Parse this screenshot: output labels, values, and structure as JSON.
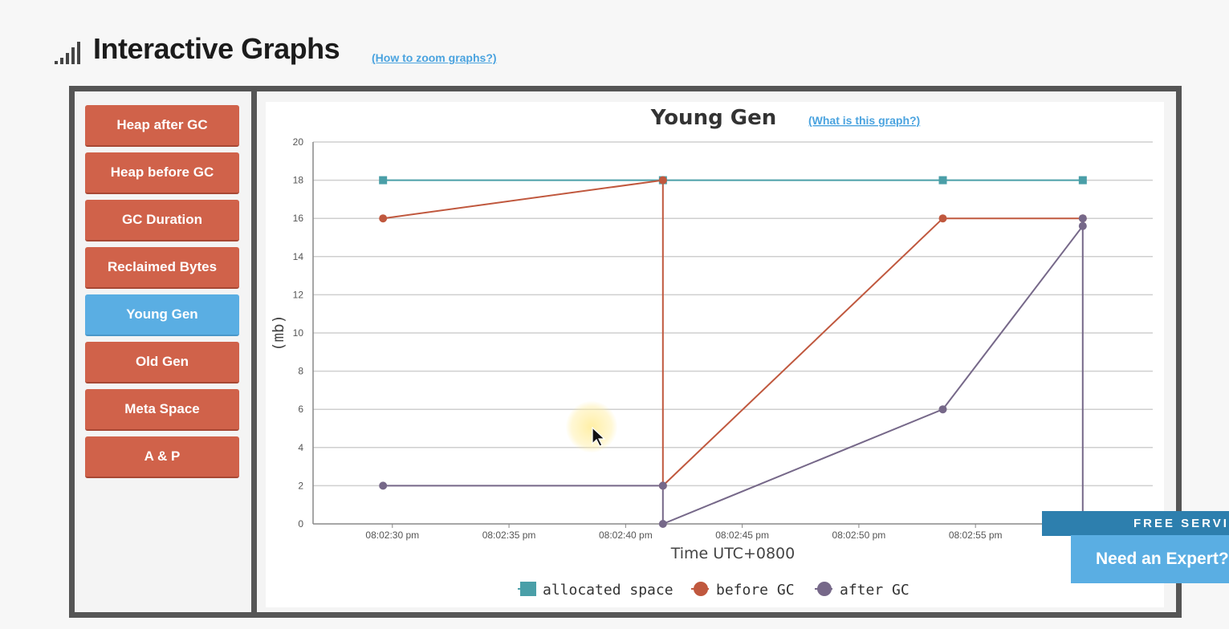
{
  "page": {
    "title": "Interactive Graphs",
    "zoom_link": "(How to zoom graphs?)"
  },
  "sidebar": {
    "items": [
      {
        "label": "Heap after GC",
        "active": false
      },
      {
        "label": "Heap before GC",
        "active": false
      },
      {
        "label": "GC Duration",
        "active": false
      },
      {
        "label": "Reclaimed Bytes",
        "active": false
      },
      {
        "label": "Young Gen",
        "active": true
      },
      {
        "label": "Old Gen",
        "active": false
      },
      {
        "label": "Meta Space",
        "active": false
      },
      {
        "label": "A & P",
        "active": false
      }
    ]
  },
  "chart_header": {
    "what_link": "(What is this graph?)"
  },
  "chart_data": {
    "type": "line",
    "title": "Young Gen",
    "xlabel": "Time UTC+0800",
    "ylabel": "(mb)",
    "ylim": [
      0,
      20
    ],
    "yticks": [
      0,
      2,
      4,
      6,
      8,
      10,
      12,
      14,
      16,
      18,
      20
    ],
    "xlim": [
      "08:02:26.6",
      "08:03:02.6"
    ],
    "xticks": [
      {
        "t": "08:02:30",
        "label": "08:02:30 pm"
      },
      {
        "t": "08:02:35",
        "label": "08:02:35 pm"
      },
      {
        "t": "08:02:40",
        "label": "08:02:40 pm"
      },
      {
        "t": "08:02:45",
        "label": "08:02:45 pm"
      },
      {
        "t": "08:02:50",
        "label": "08:02:50 pm"
      },
      {
        "t": "08:02:55",
        "label": "08:02:55 pm"
      }
    ],
    "grid": true,
    "legend_position": "bottom-center",
    "series": [
      {
        "name": "allocated space",
        "color": "#4a9fa8",
        "marker": "square",
        "points": [
          [
            "08:02:29.6",
            18
          ],
          [
            "08:02:41.6",
            18
          ],
          [
            "08:02:53.6",
            18
          ],
          [
            "08:02:59.6",
            18
          ]
        ]
      },
      {
        "name": "before GC",
        "color": "#c0583e",
        "marker": "circle",
        "points": [
          [
            "08:02:29.6",
            16
          ],
          [
            "08:02:41.6",
            18
          ],
          [
            "08:02:41.6",
            2
          ],
          [
            "08:02:53.6",
            16
          ],
          [
            "08:02:59.6",
            16
          ]
        ]
      },
      {
        "name": "after GC",
        "color": "#766889",
        "marker": "circle",
        "points": [
          [
            "08:02:29.6",
            2
          ],
          [
            "08:02:41.6",
            2
          ],
          [
            "08:02:41.6",
            0
          ],
          [
            "08:02:53.6",
            6
          ],
          [
            "08:02:59.6",
            15.6
          ],
          [
            "08:02:59.6",
            16
          ],
          [
            "08:02:59.6",
            0
          ]
        ]
      }
    ]
  },
  "cta": {
    "banner": "FREE SERVICE",
    "button": "Need an Expert?"
  }
}
